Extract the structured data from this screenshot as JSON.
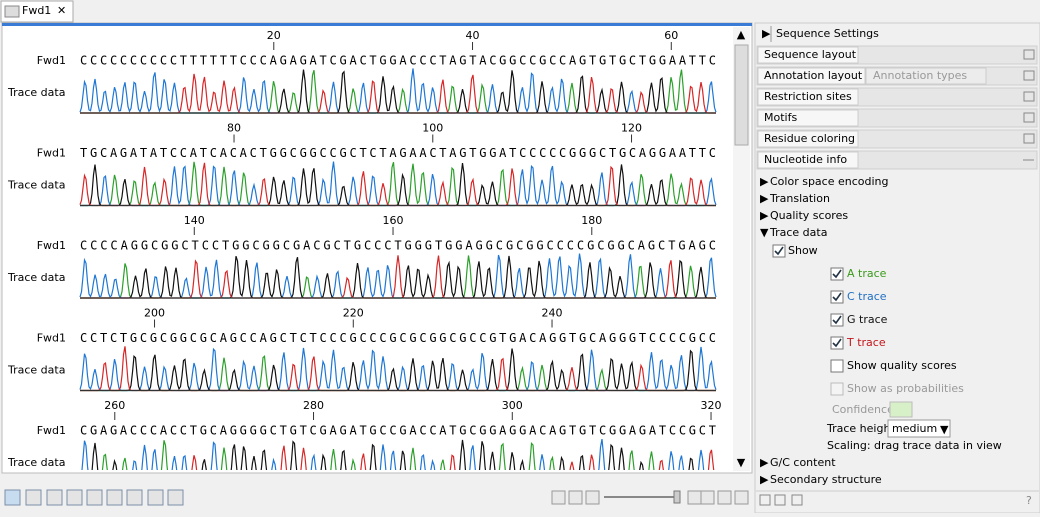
{
  "tab": "Fwd1",
  "rows": [
    {
      "name": "Fwd1",
      "trace_label": "Trace data",
      "sequence": "CCCCCCCCCCTTTTTTCCCAGAGATCGACTGGACCCTAGTACGGCCGCCAGTGTGCTGGAATTC",
      "ticks": [
        20,
        40,
        60
      ]
    },
    {
      "name": "Fwd1",
      "trace_label": "Trace data",
      "sequence": "TGCAGATATCCATCACACTGGCGGCCGCTCTAGAACTAGTGGATCCCCCGGGCTGCAGGAATTC",
      "ticks": [
        80,
        100,
        120
      ]
    },
    {
      "name": "Fwd1",
      "trace_label": "Trace data",
      "sequence": "CCCCAGGCGGCTCCTGGCGGCGACGCTGCCCTGGGTGGAGGCGCGGCCCCGCGGCAGCTGAGC",
      "ticks": [
        140,
        160,
        180
      ]
    },
    {
      "name": "Fwd1",
      "trace_label": "Trace data",
      "sequence": "CCTCTGCGCGGCGCAGCCAGCTCTCCCGCCCGCGCGGCGCCGTGACAGGTGCAGGGTCCCCGCC",
      "ticks": [
        200,
        220,
        240
      ]
    },
    {
      "name": "Fwd1",
      "trace_label": "Trace data",
      "sequence": "CGAGACCCACCTGCAGGGGCTGTCGAGATGCCGACCATGCGGAGGACAGTGTCGGAGATCCGCT",
      "ticks": [
        260,
        280,
        300,
        320
      ]
    }
  ],
  "panel": {
    "title": "Sequence Settings",
    "sections": [
      "Sequence layout",
      "Annotation layout",
      "Restriction sites",
      "Motifs",
      "Residue coloring",
      "Nucleotide info"
    ],
    "annotation_types": "Annotation types",
    "items": [
      "Color space encoding",
      "Translation",
      "Quality scores",
      "Trace data"
    ],
    "show": "Show",
    "traces": [
      "A trace",
      "C trace",
      "G trace",
      "T trace"
    ],
    "show_quality": "Show quality scores",
    "show_prob": "Show as probabilities",
    "confidence": "Confidence",
    "trace_height": "Trace height",
    "trace_height_value": "medium",
    "scaling": "Scaling: drag trace data in view",
    "after": [
      "G/C content",
      "Secondary structure"
    ]
  }
}
